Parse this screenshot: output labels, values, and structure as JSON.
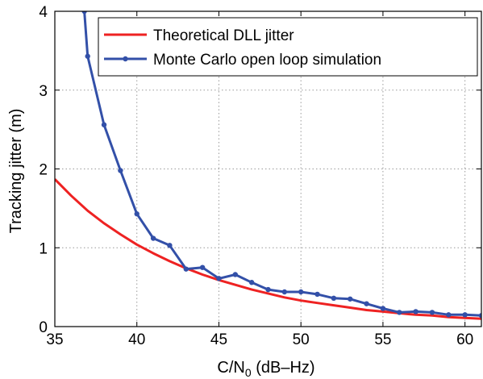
{
  "chart_data": {
    "type": "line",
    "xlabel": "C/N",
    "xlabel_subscript": "0",
    "xlabel_unit": " (dB–Hz)",
    "ylabel": "Tracking jitter (m)",
    "xlim": [
      35,
      61
    ],
    "ylim": [
      0,
      4
    ],
    "xticks": [
      35,
      40,
      45,
      50,
      55,
      60
    ],
    "yticks": [
      0,
      1,
      2,
      3,
      4
    ],
    "grid": true,
    "legend_position": "top-right",
    "series": [
      {
        "name": "Theoretical DLL jitter",
        "color": "#ee2222",
        "marker": false,
        "x": [
          35,
          36,
          37,
          38,
          39,
          40,
          41,
          42,
          43,
          44,
          45,
          46,
          47,
          48,
          49,
          50,
          51,
          52,
          53,
          54,
          55,
          56,
          57,
          58,
          59,
          60,
          61
        ],
        "y": [
          1.87,
          1.66,
          1.47,
          1.31,
          1.17,
          1.04,
          0.93,
          0.83,
          0.74,
          0.66,
          0.59,
          0.53,
          0.47,
          0.42,
          0.37,
          0.33,
          0.3,
          0.27,
          0.24,
          0.21,
          0.19,
          0.17,
          0.15,
          0.14,
          0.12,
          0.11,
          0.1
        ]
      },
      {
        "name": "Monte Carlo open loop simulation",
        "color": "#3350a8",
        "marker": true,
        "x": [
          36.8,
          37,
          38,
          39,
          40,
          41,
          42,
          43,
          44,
          45,
          46,
          47,
          48,
          49,
          50,
          51,
          52,
          53,
          54,
          55,
          56,
          57,
          58,
          59,
          60,
          61
        ],
        "y": [
          4.0,
          3.43,
          2.56,
          1.98,
          1.43,
          1.12,
          1.03,
          0.73,
          0.75,
          0.61,
          0.66,
          0.56,
          0.47,
          0.44,
          0.44,
          0.41,
          0.36,
          0.35,
          0.29,
          0.23,
          0.18,
          0.19,
          0.18,
          0.15,
          0.15,
          0.14
        ]
      }
    ]
  }
}
